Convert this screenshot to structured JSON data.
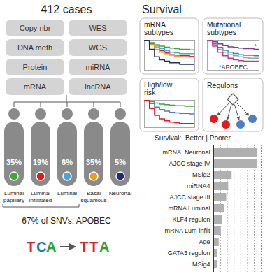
{
  "left_panel": {
    "title": "412 cases",
    "data_types": [
      "Copy nbr",
      "WES",
      "DNA meth",
      "WGS",
      "Protein",
      "miRNA",
      "mRNA",
      "lncRNA"
    ],
    "subtypes": [
      {
        "label": "Luminal papillary",
        "percent_label": "35%",
        "color": "#3aaa35"
      },
      {
        "label": "Luminal infiltrated",
        "percent_label": "19%",
        "color": "#e31a1c"
      },
      {
        "label": "Luminal",
        "percent_label": "6%",
        "color": "#4aa3df"
      },
      {
        "label": "Basal squamous",
        "percent_label": "35%",
        "color": "#f39c12"
      },
      {
        "label": "Neuronal",
        "percent_label": "5%",
        "color": "#1f2d6b"
      }
    ],
    "apobec": {
      "text": "67% of SNVs: APOBEC",
      "logo_before": "TCA",
      "logo_after": "TTA"
    }
  },
  "survival_panel": {
    "title": "Survival",
    "regulons": {
      "title": "Regulons"
    }
  },
  "chart_data": [
    {
      "type": "line",
      "title": "mRNA subtypes",
      "line_style": "step",
      "x": [
        0,
        1,
        2,
        3,
        4,
        5,
        6,
        7,
        8,
        9,
        10
      ],
      "series": [
        {
          "color": "#3aaa35",
          "values": [
            1,
            0.92,
            0.85,
            0.8,
            0.77,
            0.74,
            0.72,
            0.7,
            0.7,
            0.68,
            0.68
          ]
        },
        {
          "color": "#e31a1c",
          "values": [
            1,
            0.88,
            0.75,
            0.65,
            0.58,
            0.52,
            0.5,
            0.48,
            0.48,
            0.46,
            0.46
          ]
        },
        {
          "color": "#4aa3df",
          "values": [
            1,
            0.9,
            0.8,
            0.72,
            0.65,
            0.6,
            0.58,
            0.55,
            0.55,
            0.55,
            0.55
          ]
        },
        {
          "color": "#f39c12",
          "values": [
            1,
            0.85,
            0.7,
            0.6,
            0.55,
            0.5,
            0.47,
            0.45,
            0.44,
            0.44,
            0.44
          ]
        },
        {
          "color": "#1f2d6b",
          "values": [
            1,
            0.7,
            0.45,
            0.35,
            0.3,
            0.25,
            0.25,
            0.2,
            0.2,
            0.2,
            0.2
          ]
        }
      ],
      "xlim": [
        0,
        10
      ],
      "ylim": [
        0,
        1
      ],
      "tick_labels": false
    },
    {
      "type": "line",
      "title": "Mutational subtypes",
      "line_style": "step",
      "x": [
        0,
        1,
        2,
        3,
        4,
        5,
        6,
        7,
        8,
        9,
        10
      ],
      "series": [
        {
          "color": "#7d3c98",
          "values": [
            1,
            0.95,
            0.88,
            0.82,
            0.78,
            0.76,
            0.74,
            0.72,
            0.72,
            0.7,
            0.7
          ]
        },
        {
          "color": "#2e86c1",
          "values": [
            1,
            0.88,
            0.76,
            0.66,
            0.6,
            0.56,
            0.52,
            0.5,
            0.5,
            0.48,
            0.48
          ]
        },
        {
          "color": "#a0a0a0",
          "values": [
            1,
            0.85,
            0.7,
            0.6,
            0.52,
            0.48,
            0.45,
            0.42,
            0.4,
            0.4,
            0.4
          ]
        },
        {
          "color": "#c0398f",
          "values": [
            1,
            0.8,
            0.6,
            0.48,
            0.4,
            0.35,
            0.32,
            0.3,
            0.3,
            0.3,
            0.3
          ]
        }
      ],
      "annotations": [
        {
          "text": "*",
          "x": 9.3,
          "y": 0.8
        },
        {
          "text": "*APOBEC",
          "x": 5,
          "y": 0.1
        }
      ],
      "xlim": [
        0,
        10
      ],
      "ylim": [
        0,
        1
      ],
      "tick_labels": false
    },
    {
      "type": "line",
      "title": "High/low risk",
      "line_style": "step",
      "x": [
        0,
        1,
        2,
        3,
        4,
        5,
        6,
        7,
        8,
        9,
        10
      ],
      "series": [
        {
          "color": "#3aaa35",
          "values": [
            1,
            0.95,
            0.9,
            0.86,
            0.84,
            0.82,
            0.8,
            0.8,
            0.78,
            0.78,
            0.78
          ]
        },
        {
          "color": "#4a7fc1",
          "values": [
            1,
            0.88,
            0.75,
            0.66,
            0.6,
            0.56,
            0.54,
            0.52,
            0.52,
            0.5,
            0.5
          ]
        },
        {
          "color": "#e31a1c",
          "values": [
            1,
            0.7,
            0.45,
            0.32,
            0.25,
            0.2,
            0.18,
            0.15,
            0.15,
            0.15,
            0.15
          ]
        }
      ],
      "xlim": [
        0,
        10
      ],
      "ylim": [
        0,
        1
      ],
      "tick_labels": false
    },
    {
      "type": "bar",
      "title": "Survival:  Better | Poorer",
      "orientation": "horizontal",
      "categories": [
        "mRNA, Neuronal",
        "AJCC stage IV",
        "MSig2",
        "miRNA4",
        "AJCC stage III",
        "mRNA Luminal",
        "KLF4 regulon",
        "mRNA Lum-infilt",
        "Age",
        "GATA3 regulon",
        "MSig4"
      ],
      "values": [
        6.5,
        6.4,
        2.7,
        2.2,
        1.9,
        1.6,
        1.3,
        1.1,
        0.8,
        0.6,
        0.6
      ],
      "color": "#b0b0b0",
      "xlim": [
        0,
        7
      ],
      "xticks": [
        0,
        1,
        2,
        3,
        4,
        5,
        6,
        7
      ],
      "grid": true,
      "tick_labels": "y"
    }
  ]
}
